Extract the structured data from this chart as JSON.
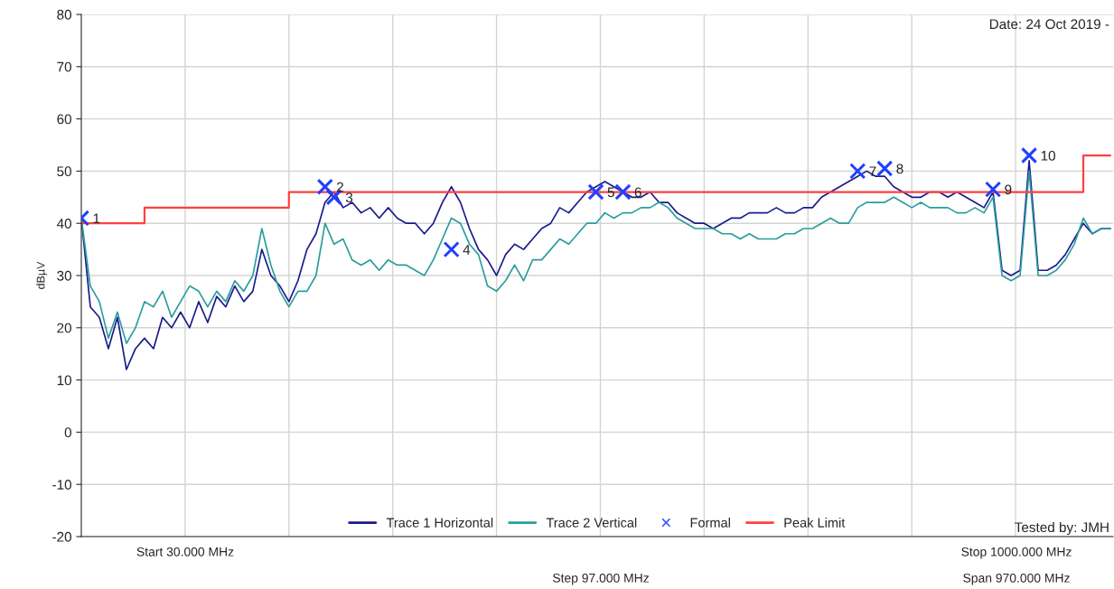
{
  "chart_data": {
    "type": "line",
    "ylabel": "dBµV",
    "categories": [
      null,
      null,
      null,
      null,
      null,
      null,
      null,
      null,
      null,
      null,
      null,
      null,
      null,
      null,
      null,
      null,
      null,
      null,
      null,
      null,
      null,
      null,
      null,
      null,
      null,
      null,
      null,
      null,
      null,
      null,
      null,
      null,
      null,
      null,
      null,
      null,
      null,
      null,
      null,
      null,
      null,
      null,
      null,
      null,
      null,
      null,
      null,
      null,
      null,
      null,
      null,
      null,
      null,
      null,
      null,
      null,
      null,
      null,
      null,
      null,
      null,
      null,
      null,
      null,
      null,
      null,
      null,
      null,
      null,
      null,
      null,
      null,
      null,
      null,
      null,
      null,
      null,
      null,
      null,
      null,
      null,
      null,
      null,
      null,
      null,
      null,
      null,
      null,
      null,
      null,
      null,
      null,
      null,
      null,
      null,
      null,
      null,
      null,
      null,
      null,
      null,
      null,
      null,
      null,
      null,
      null,
      null,
      null,
      null,
      null,
      null,
      null,
      null,
      null,
      null
    ],
    "series": [
      {
        "name": "Trace 1 Horizontal",
        "color": "#1a1a8c",
        "values": [
          41,
          24,
          22,
          16,
          22,
          12,
          16,
          18,
          16,
          22,
          20,
          23,
          20,
          25,
          21,
          26,
          24,
          28,
          25,
          27,
          35,
          30,
          28,
          25,
          29,
          35,
          38,
          44,
          46,
          43,
          44,
          42,
          43,
          41,
          43,
          41,
          40,
          40,
          38,
          40,
          44,
          47,
          44,
          39,
          35,
          33,
          30,
          34,
          36,
          35,
          37,
          39,
          40,
          43,
          42,
          44,
          46,
          47,
          48,
          47,
          46,
          45,
          45,
          46,
          44,
          44,
          42,
          41,
          40,
          40,
          39,
          40,
          41,
          41,
          42,
          42,
          42,
          43,
          42,
          42,
          43,
          43,
          45,
          46,
          47,
          48,
          49,
          50,
          49,
          49,
          47,
          46,
          45,
          45,
          46,
          46,
          45,
          46,
          45,
          44,
          43,
          46,
          31,
          30,
          31,
          52,
          31,
          31,
          32,
          34,
          37,
          40,
          38,
          39,
          39
        ]
      },
      {
        "name": "Trace 2 Vertical",
        "color": "#2a9d9d",
        "values": [
          41,
          28,
          25,
          18,
          23,
          17,
          20,
          25,
          24,
          27,
          22,
          25,
          28,
          27,
          24,
          27,
          25,
          29,
          27,
          30,
          39,
          32,
          27,
          24,
          27,
          27,
          30,
          40,
          36,
          37,
          33,
          32,
          33,
          31,
          33,
          32,
          32,
          31,
          30,
          33,
          37,
          41,
          40,
          36,
          34,
          28,
          27,
          29,
          32,
          29,
          33,
          33,
          35,
          37,
          36,
          38,
          40,
          40,
          42,
          41,
          42,
          42,
          43,
          43,
          44,
          43,
          41,
          40,
          39,
          39,
          39,
          38,
          38,
          37,
          38,
          37,
          37,
          37,
          38,
          38,
          39,
          39,
          40,
          41,
          40,
          40,
          43,
          44,
          44,
          44,
          45,
          44,
          43,
          44,
          43,
          43,
          43,
          42,
          42,
          43,
          42,
          45,
          30,
          29,
          30,
          50,
          30,
          30,
          31,
          33,
          36,
          41,
          38,
          39,
          39
        ]
      },
      {
        "name": "Formal",
        "type": "scatter",
        "color": "#2040ff",
        "marker": "cross",
        "values": [
          41,
          null,
          null,
          null,
          null,
          null,
          null,
          null,
          null,
          null,
          null,
          null,
          null,
          null,
          null,
          null,
          null,
          null,
          null,
          null,
          null,
          null,
          null,
          null,
          null,
          null,
          null,
          47,
          45,
          null,
          null,
          null,
          null,
          null,
          null,
          null,
          null,
          null,
          null,
          null,
          null,
          35,
          null,
          null,
          null,
          null,
          null,
          null,
          null,
          null,
          null,
          null,
          null,
          null,
          null,
          null,
          null,
          46,
          null,
          null,
          46,
          null,
          null,
          null,
          null,
          null,
          null,
          null,
          null,
          null,
          null,
          null,
          null,
          null,
          null,
          null,
          null,
          null,
          null,
          null,
          null,
          null,
          null,
          null,
          null,
          null,
          50,
          null,
          null,
          50.5,
          null,
          null,
          null,
          null,
          null,
          null,
          null,
          null,
          null,
          null,
          null,
          46.5,
          null,
          null,
          null,
          53,
          null,
          null,
          null,
          null,
          null,
          null,
          null,
          null,
          null
        ]
      },
      {
        "name": "Peak Limit",
        "type": "step",
        "color": "#ff4040",
        "values": [
          40,
          40,
          40,
          40,
          40,
          40,
          40,
          43,
          43,
          43,
          43,
          43,
          43,
          43,
          43,
          43,
          43,
          43,
          43,
          43,
          43,
          43,
          43,
          46,
          46,
          46,
          46,
          46,
          46,
          46,
          46,
          46,
          46,
          46,
          46,
          46,
          46,
          46,
          46,
          46,
          46,
          46,
          46,
          46,
          46,
          46,
          46,
          46,
          46,
          46,
          46,
          46,
          46,
          46,
          46,
          46,
          46,
          46,
          46,
          46,
          46,
          46,
          46,
          46,
          46,
          46,
          46,
          46,
          46,
          46,
          46,
          46,
          46,
          46,
          46,
          46,
          46,
          46,
          46,
          46,
          46,
          46,
          46,
          46,
          46,
          46,
          46,
          46,
          46,
          46,
          46,
          46,
          46,
          46,
          46,
          46,
          46,
          46,
          46,
          46,
          46,
          46,
          46,
          46,
          46,
          46,
          46,
          46,
          46,
          46,
          46,
          53,
          53,
          53,
          53
        ]
      }
    ],
    "ylim": [
      -20,
      80
    ],
    "yticks": [
      -20,
      -10,
      0,
      10,
      20,
      30,
      40,
      50,
      60,
      70,
      80
    ],
    "grid": true,
    "legend": "bottom",
    "annotations": [
      "1",
      "2",
      "3",
      "4",
      "5",
      "6",
      "7",
      "8",
      "9",
      "10",
      "Date: 24 Oct 2019 -",
      "Tested by: JMH",
      "Start 30.000 MHz",
      "Step 97.000 MHz",
      "Stop 1000.000 MHz",
      "Span 970.000 MHz"
    ]
  }
}
